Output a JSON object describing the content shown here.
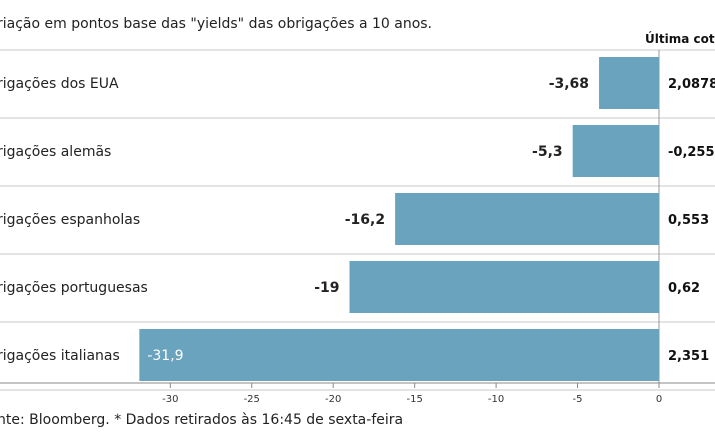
{
  "subtitle": "riação em pontos base das \"yields\" das obrigações a 10 anos.",
  "last_quote_header": "Última cotaç",
  "source": "nte: Bloomberg.  * Dados retirados às 16:45 de sexta-feira",
  "colors": {
    "bar": "#6aa3bd",
    "gridline": "#c8c8c8",
    "text": "#222222"
  },
  "chart_data": {
    "type": "bar",
    "orientation": "horizontal",
    "categories": [
      "rigações dos EUA",
      "rigações alemãs",
      "rigações espanholas",
      "rigações portuguesas",
      "rigações italianas"
    ],
    "values": [
      -3.68,
      -5.3,
      -16.2,
      -19,
      -31.9
    ],
    "value_labels": [
      "-3,68",
      "-5,3",
      "-16,2",
      "-19",
      "-31,9"
    ],
    "last_quote": [
      "2,0878",
      "-0,255",
      "0,553",
      "0,62",
      "2,351"
    ],
    "x_ticks": [
      -30,
      -25,
      -20,
      -15,
      -10,
      -5,
      0
    ],
    "xlim": [
      -33,
      0
    ],
    "xlabel": "",
    "ylabel": "",
    "grid": false
  }
}
